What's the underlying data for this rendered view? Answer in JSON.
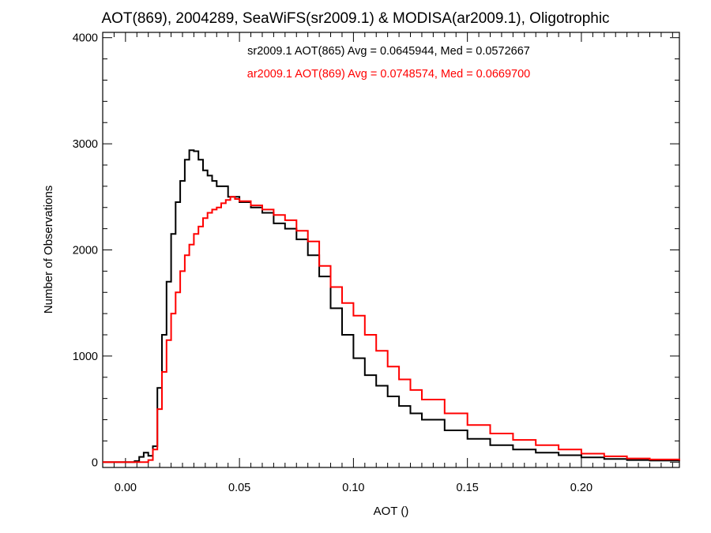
{
  "chart_data": {
    "type": "line",
    "step": true,
    "title": "AOT(869), 2004289, SeaWiFS(sr2009.1) & MODISA(ar2009.1), Oligotrophic",
    "xlabel": "AOT ()",
    "ylabel": "Number of Observations",
    "xlim": [
      -0.01,
      0.243
    ],
    "ylim": [
      -50,
      4050
    ],
    "x_ticks": [
      0.0,
      0.05,
      0.1,
      0.15,
      0.2
    ],
    "x_tick_labels": [
      "0.00",
      "0.05",
      "0.10",
      "0.15",
      "0.20"
    ],
    "y_ticks": [
      0,
      1000,
      2000,
      3000,
      4000
    ],
    "y_tick_labels": [
      "0",
      "1000",
      "2000",
      "3000",
      "4000"
    ],
    "grid": false,
    "legend_position": "top-center",
    "legend_entries": [
      "sr2009.1 AOT(865) Avg = 0.0645944, Med = 0.0572667",
      "ar2009.1 AOT(869) Avg = 0.0748574, Med = 0.0669700"
    ],
    "series": [
      {
        "color": "#000000",
        "x": [
          -0.01,
          0.0,
          0.004,
          0.006,
          0.008,
          0.01,
          0.012,
          0.014,
          0.016,
          0.018,
          0.02,
          0.022,
          0.024,
          0.026,
          0.028,
          0.03,
          0.032,
          0.034,
          0.036,
          0.038,
          0.04,
          0.045,
          0.05,
          0.055,
          0.06,
          0.065,
          0.07,
          0.075,
          0.08,
          0.085,
          0.09,
          0.095,
          0.1,
          0.105,
          0.11,
          0.115,
          0.12,
          0.125,
          0.13,
          0.14,
          0.15,
          0.16,
          0.17,
          0.18,
          0.19,
          0.2,
          0.21,
          0.22,
          0.23,
          0.243
        ],
        "y": [
          0,
          0,
          10,
          50,
          90,
          60,
          150,
          700,
          1200,
          1700,
          2150,
          2450,
          2650,
          2850,
          2940,
          2930,
          2850,
          2750,
          2700,
          2650,
          2600,
          2500,
          2450,
          2400,
          2350,
          2250,
          2200,
          2100,
          1950,
          1750,
          1450,
          1200,
          980,
          820,
          720,
          620,
          530,
          460,
          400,
          300,
          220,
          160,
          120,
          90,
          65,
          45,
          30,
          20,
          15,
          10
        ]
      },
      {
        "color": "#ff0000",
        "x": [
          -0.01,
          0.0,
          0.008,
          0.01,
          0.012,
          0.014,
          0.016,
          0.018,
          0.02,
          0.022,
          0.024,
          0.026,
          0.028,
          0.03,
          0.032,
          0.034,
          0.036,
          0.038,
          0.04,
          0.042,
          0.044,
          0.046,
          0.048,
          0.05,
          0.055,
          0.06,
          0.065,
          0.07,
          0.075,
          0.08,
          0.085,
          0.09,
          0.095,
          0.1,
          0.105,
          0.11,
          0.115,
          0.12,
          0.125,
          0.13,
          0.14,
          0.15,
          0.16,
          0.17,
          0.18,
          0.19,
          0.2,
          0.21,
          0.22,
          0.23,
          0.243
        ],
        "y": [
          0,
          0,
          0,
          20,
          120,
          500,
          850,
          1150,
          1400,
          1600,
          1800,
          1950,
          2050,
          2150,
          2220,
          2300,
          2350,
          2380,
          2400,
          2440,
          2470,
          2500,
          2480,
          2460,
          2420,
          2380,
          2330,
          2280,
          2180,
          2080,
          1850,
          1650,
          1500,
          1380,
          1200,
          1050,
          900,
          780,
          680,
          590,
          460,
          350,
          270,
          210,
          160,
          120,
          80,
          55,
          35,
          25,
          15
        ]
      }
    ]
  }
}
